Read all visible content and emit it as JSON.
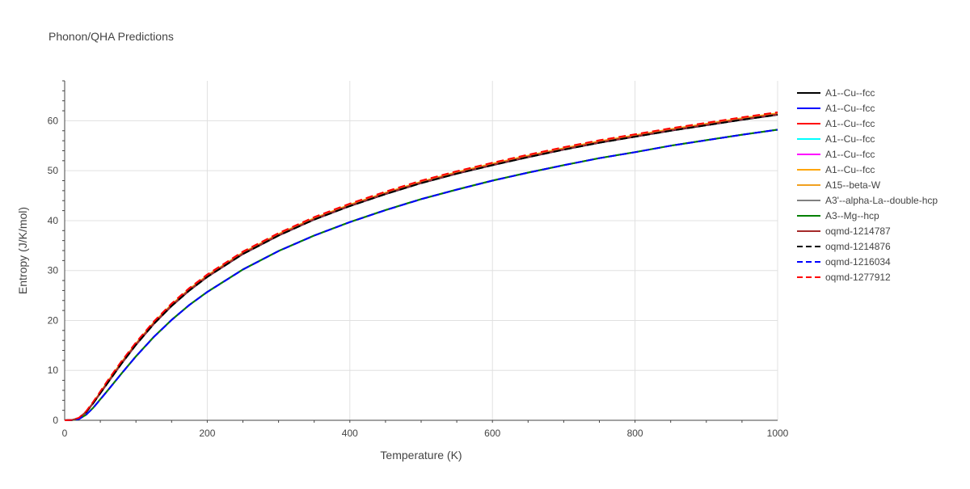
{
  "chart_data": {
    "type": "line",
    "title": "Phonon/QHA Predictions",
    "xlabel": "Temperature (K)",
    "ylabel": "Entropy (J/K/mol)",
    "xlim": [
      0,
      1000
    ],
    "ylim": [
      0,
      68
    ],
    "xticks": [
      0,
      200,
      400,
      600,
      800,
      1000
    ],
    "yticks": [
      0,
      10,
      20,
      30,
      40,
      50,
      60
    ],
    "grid": true,
    "legend_position": "right",
    "x": [
      0,
      10,
      20,
      30,
      40,
      50,
      60,
      80,
      100,
      125,
      150,
      175,
      200,
      250,
      300,
      350,
      400,
      450,
      500,
      550,
      600,
      650,
      700,
      750,
      800,
      850,
      900,
      950,
      1000
    ],
    "series": [
      {
        "name": "A1--Cu--fcc",
        "color": "#000000",
        "dash": "solid",
        "values": [
          0,
          0.05,
          0.4,
          1.6,
          3.4,
          5.4,
          7.4,
          11.4,
          15.1,
          19.3,
          22.9,
          26.0,
          28.7,
          33.3,
          37.0,
          40.2,
          42.9,
          45.3,
          47.5,
          49.4,
          51.1,
          52.7,
          54.2,
          55.6,
          56.8,
          58.0,
          59.1,
          60.2,
          61.2
        ]
      },
      {
        "name": "A1--Cu--fcc",
        "color": "#0000ff",
        "dash": "solid",
        "values": [
          0,
          0.03,
          0.25,
          1.1,
          2.5,
          4.2,
          5.9,
          9.4,
          12.8,
          16.7,
          20.1,
          23.1,
          25.7,
          30.2,
          33.9,
          37.0,
          39.7,
          42.1,
          44.3,
          46.2,
          48.0,
          49.6,
          51.1,
          52.5,
          53.7,
          55.0,
          56.1,
          57.2,
          58.2
        ]
      },
      {
        "name": "A1--Cu--fcc",
        "color": "#ff0000",
        "dash": "solid",
        "values": [
          0,
          0.05,
          0.45,
          1.7,
          3.5,
          5.5,
          7.6,
          11.6,
          15.3,
          19.5,
          23.1,
          26.2,
          28.9,
          33.5,
          37.2,
          40.4,
          43.1,
          45.5,
          47.7,
          49.6,
          51.3,
          52.9,
          54.4,
          55.8,
          57.0,
          58.2,
          59.3,
          60.4,
          61.4
        ]
      },
      {
        "name": "A1--Cu--fcc",
        "color": "#00ffff",
        "dash": "solid",
        "values": [
          0,
          0.05,
          0.42,
          1.65,
          3.45,
          5.45,
          7.5,
          11.5,
          15.2,
          19.4,
          23.0,
          26.1,
          28.8,
          33.4,
          37.1,
          40.3,
          43.0,
          45.4,
          47.6,
          49.5,
          51.2,
          52.8,
          54.3,
          55.7,
          56.9,
          58.1,
          59.2,
          60.3,
          61.3
        ]
      },
      {
        "name": "A1--Cu--fcc",
        "color": "#ff00ff",
        "dash": "solid",
        "values": [
          0,
          0.05,
          0.42,
          1.65,
          3.45,
          5.45,
          7.5,
          11.5,
          15.2,
          19.4,
          23.0,
          26.1,
          28.8,
          33.4,
          37.1,
          40.3,
          43.0,
          45.4,
          47.6,
          49.5,
          51.2,
          52.8,
          54.3,
          55.7,
          56.9,
          58.1,
          59.2,
          60.3,
          61.3
        ]
      },
      {
        "name": "A1--Cu--fcc",
        "color": "#ffa500",
        "dash": "solid",
        "values": [
          0,
          0.05,
          0.46,
          1.72,
          3.55,
          5.6,
          7.7,
          11.7,
          15.4,
          19.6,
          23.2,
          26.3,
          29.0,
          33.6,
          37.3,
          40.5,
          43.2,
          45.6,
          47.8,
          49.7,
          51.4,
          53.0,
          54.5,
          55.9,
          57.1,
          58.3,
          59.4,
          60.5,
          61.5
        ]
      },
      {
        "name": "A15--beta-W",
        "color": "#f0a020",
        "dash": "solid",
        "values": [
          0,
          0.05,
          0.44,
          1.7,
          3.5,
          5.5,
          7.6,
          11.6,
          15.3,
          19.5,
          23.1,
          26.2,
          28.9,
          33.5,
          37.2,
          40.4,
          43.1,
          45.5,
          47.7,
          49.6,
          51.3,
          52.9,
          54.4,
          55.8,
          57.0,
          58.2,
          59.3,
          60.4,
          61.4
        ]
      },
      {
        "name": "A3'--alpha-La--double-hcp",
        "color": "#808080",
        "dash": "solid",
        "values": [
          0,
          0.03,
          0.25,
          1.1,
          2.5,
          4.2,
          5.9,
          9.4,
          12.8,
          16.7,
          20.1,
          23.1,
          25.7,
          30.2,
          33.9,
          37.0,
          39.7,
          42.1,
          44.3,
          46.2,
          48.0,
          49.6,
          51.1,
          52.5,
          53.7,
          55.0,
          56.1,
          57.2,
          58.2
        ]
      },
      {
        "name": "A3--Mg--hcp",
        "color": "#008000",
        "dash": "solid",
        "values": [
          0,
          0.03,
          0.26,
          1.12,
          2.52,
          4.22,
          5.92,
          9.42,
          12.82,
          16.72,
          20.12,
          23.12,
          25.72,
          30.22,
          33.92,
          37.02,
          39.72,
          42.12,
          44.32,
          46.22,
          48.02,
          49.62,
          51.12,
          52.52,
          53.72,
          55.02,
          56.12,
          57.22,
          58.22
        ]
      },
      {
        "name": "oqmd-1214787",
        "color": "#a52a2a",
        "dash": "solid",
        "values": [
          0,
          0.05,
          0.42,
          1.65,
          3.45,
          5.45,
          7.5,
          11.5,
          15.2,
          19.4,
          23.0,
          26.1,
          28.8,
          33.4,
          37.1,
          40.3,
          43.0,
          45.4,
          47.6,
          49.5,
          51.2,
          52.8,
          54.3,
          55.7,
          56.9,
          58.1,
          59.2,
          60.3,
          61.3
        ]
      },
      {
        "name": "oqmd-1214876",
        "color": "#000000",
        "dash": "dash",
        "values": [
          0,
          0.05,
          0.4,
          1.6,
          3.4,
          5.4,
          7.4,
          11.4,
          15.1,
          19.3,
          22.9,
          26.0,
          28.7,
          33.3,
          37.0,
          40.2,
          42.9,
          45.3,
          47.5,
          49.4,
          51.1,
          52.7,
          54.2,
          55.6,
          56.8,
          58.0,
          59.1,
          60.2,
          61.2
        ]
      },
      {
        "name": "oqmd-1216034",
        "color": "#0000ff",
        "dash": "dash",
        "values": [
          0,
          0.03,
          0.25,
          1.1,
          2.5,
          4.2,
          5.9,
          9.4,
          12.8,
          16.7,
          20.1,
          23.1,
          25.7,
          30.2,
          33.9,
          37.0,
          39.7,
          42.1,
          44.3,
          46.2,
          48.0,
          49.6,
          51.1,
          52.5,
          53.7,
          55.0,
          56.1,
          57.2,
          58.2
        ]
      },
      {
        "name": "oqmd-1277912",
        "color": "#ff0000",
        "dash": "dash",
        "values": [
          0,
          0.06,
          0.5,
          1.8,
          3.7,
          5.8,
          7.9,
          11.9,
          15.6,
          19.8,
          23.4,
          26.5,
          29.2,
          33.8,
          37.5,
          40.7,
          43.4,
          45.8,
          48.0,
          49.9,
          51.6,
          53.2,
          54.7,
          56.1,
          57.3,
          58.5,
          59.6,
          60.7,
          61.7
        ]
      }
    ]
  }
}
